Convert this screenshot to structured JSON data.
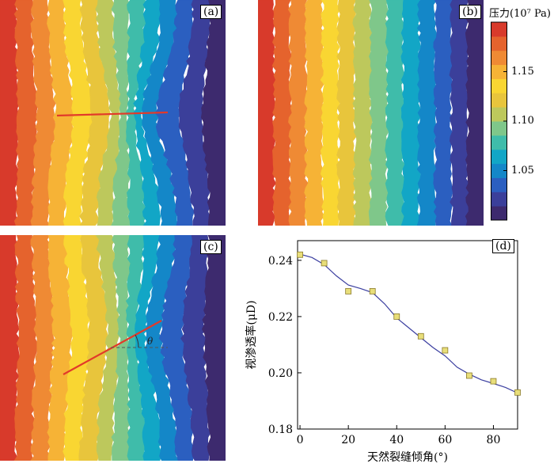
{
  "panels": {
    "a": {
      "label": "(a)"
    },
    "b": {
      "label": "(b)"
    },
    "c": {
      "label": "(c)",
      "angle_symbol": "θ"
    },
    "d": {
      "label": "(d)"
    }
  },
  "colorbar": {
    "title": "压力(10⁷ Pa)",
    "ticks": [
      {
        "value": 1.15,
        "label": "1.15"
      },
      {
        "value": 1.1,
        "label": "1.10"
      },
      {
        "value": 1.05,
        "label": "1.05"
      }
    ],
    "range": [
      1.0,
      1.2
    ],
    "colors": [
      "#3d2a6e",
      "#3b3f9a",
      "#2b5fc0",
      "#1487c8",
      "#12a6c6",
      "#3fbcaa",
      "#7fc78a",
      "#bdc85c",
      "#e8c53c",
      "#f9d632",
      "#f6b336",
      "#ef8a34",
      "#e5632d",
      "#d83a2b"
    ]
  },
  "chart_data": {
    "type": "scatter",
    "xlabel": "天然裂缝倾角(°)",
    "ylabel": "视渗透率(μD)",
    "xlim": [
      -1,
      90
    ],
    "ylim": [
      0.18,
      0.247
    ],
    "xticks": [
      {
        "value": 0,
        "label": "0"
      },
      {
        "value": 20,
        "label": "20"
      },
      {
        "value": 40,
        "label": "40"
      },
      {
        "value": 60,
        "label": "60"
      },
      {
        "value": 80,
        "label": "80"
      }
    ],
    "yticks": [
      {
        "value": 0.18,
        "label": "0.18"
      },
      {
        "value": 0.2,
        "label": "0.20"
      },
      {
        "value": 0.22,
        "label": "0.22"
      },
      {
        "value": 0.24,
        "label": "0.24"
      }
    ],
    "points": {
      "x": [
        0,
        10,
        20,
        30,
        40,
        50,
        60,
        70,
        80,
        90
      ],
      "y": [
        0.242,
        0.239,
        0.229,
        0.229,
        0.22,
        0.213,
        0.208,
        0.199,
        0.197,
        0.193
      ]
    },
    "fit_curve": {
      "x": [
        0,
        5,
        10,
        15,
        20,
        25,
        30,
        35,
        40,
        45,
        50,
        55,
        60,
        65,
        70,
        75,
        80,
        85,
        90
      ],
      "y": [
        0.2422,
        0.241,
        0.2385,
        0.2345,
        0.2312,
        0.23,
        0.2285,
        0.2245,
        0.2195,
        0.216,
        0.2125,
        0.209,
        0.206,
        0.202,
        0.1995,
        0.1975,
        0.1962,
        0.1948,
        0.1928
      ]
    },
    "marker_color": "#e8de7a",
    "line_color": "#3b3fa0"
  }
}
